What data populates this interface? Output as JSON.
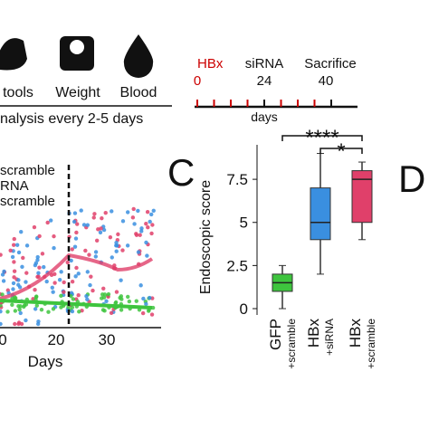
{
  "panel_a": {
    "labels": [
      "tools",
      "Weight",
      "Blood"
    ],
    "note": "nalysis every 2-5 days"
  },
  "timeline": {
    "events": [
      {
        "label": "HBx",
        "day": "0"
      },
      {
        "label": "siRNA",
        "day": "24"
      },
      {
        "label": "Sacrifice",
        "day": "40"
      }
    ],
    "axis_label": "days"
  },
  "panel_b": {
    "legend": [
      "scramble",
      "RNA",
      "scramble"
    ],
    "xticks": [
      "0",
      "20",
      "30"
    ],
    "xlabel": "Days"
  },
  "panel_c": {
    "label": "C",
    "ylabel": "Endoscopic score",
    "ylim": [
      0,
      9.5
    ],
    "yticks": [
      0,
      2.5,
      5,
      7.5
    ],
    "groups": [
      {
        "name": "GFP",
        "sub": "+scramble",
        "color": "#3ec43e",
        "min": 0,
        "q1": 1,
        "median": 1.5,
        "q3": 2,
        "max": 2.5
      },
      {
        "name": "HBx",
        "sub": "+siRNA",
        "color": "#3a8fe0",
        "min": 2,
        "q1": 4,
        "median": 5,
        "q3": 7,
        "max": 9
      },
      {
        "name": "HBx",
        "sub": "+scramble",
        "color": "#e0406a",
        "min": 4,
        "q1": 5,
        "median": 7.5,
        "q3": 8,
        "max": 8.5
      }
    ],
    "significance": [
      "****",
      "*"
    ]
  },
  "panel_d": {
    "label": "D"
  }
}
